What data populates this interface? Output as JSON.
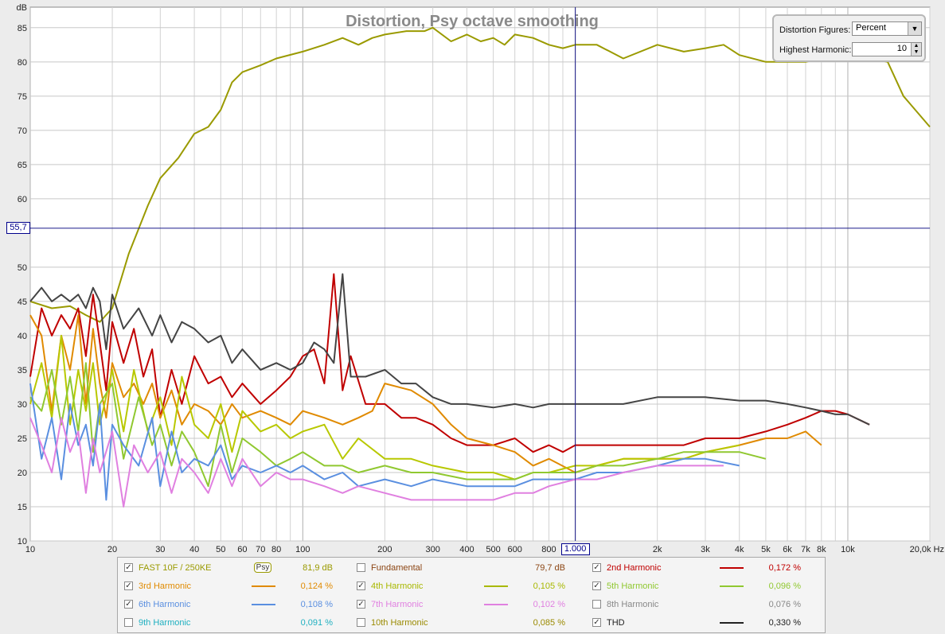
{
  "chart_data": {
    "type": "line",
    "title": "Distortion, Psy octave smoothing",
    "ylabel": "dB",
    "x_scale": "log",
    "xlim": [
      10,
      20000
    ],
    "ylim": [
      10,
      88
    ],
    "grid": true,
    "x_ticks": [
      10,
      20,
      30,
      40,
      50,
      60,
      70,
      80,
      100,
      200,
      300,
      400,
      500,
      600,
      800,
      1000,
      2000,
      3000,
      4000,
      5000,
      6000,
      7000,
      8000,
      10000,
      20000
    ],
    "x_tick_labels": [
      "10",
      "20",
      "30",
      "40",
      "50",
      "60",
      "70",
      "80",
      "100",
      "200",
      "300",
      "400",
      "500",
      "600",
      "800",
      "1.000",
      "2k",
      "3k",
      "4k",
      "5k",
      "6k",
      "7k",
      "8k",
      "10k",
      "20,0k Hz"
    ],
    "y_ticks": [
      10,
      15,
      20,
      25,
      30,
      35,
      40,
      45,
      50,
      60,
      65,
      70,
      75,
      80,
      85
    ],
    "cursor": {
      "x": 1000,
      "y": 55.7,
      "x_label": "1.000",
      "y_label": "55,7"
    },
    "series": [
      {
        "name": "FAST 10F / 250KE",
        "color": "#9a9a00",
        "x": [
          10,
          12,
          14,
          16,
          18,
          20,
          23,
          27,
          30,
          35,
          40,
          45,
          50,
          55,
          60,
          70,
          80,
          100,
          120,
          140,
          160,
          180,
          200,
          240,
          280,
          300,
          350,
          400,
          450,
          500,
          550,
          600,
          700,
          800,
          900,
          1000,
          1200,
          1500,
          2000,
          2500,
          3000,
          3500,
          4000,
          5000,
          6000,
          7000,
          8000,
          9000,
          10000,
          12000,
          14000,
          16000,
          20000
        ],
        "y": [
          45,
          44,
          44.3,
          43,
          42,
          44,
          52,
          59,
          63,
          66,
          69.5,
          70.5,
          73,
          77,
          78.5,
          79.5,
          80.5,
          81.5,
          82.5,
          83.5,
          82.5,
          83.5,
          84,
          84.5,
          84.5,
          85,
          83,
          84,
          83,
          83.5,
          82.5,
          84,
          83.5,
          82.5,
          82,
          82.5,
          82.5,
          80.5,
          82.5,
          81.5,
          82,
          82.5,
          81,
          80,
          80,
          80,
          80.5,
          81,
          80.5,
          80.5,
          80,
          75,
          70.5
        ]
      },
      {
        "name": "2nd Harmonic",
        "color": "#c00000",
        "x": [
          10,
          11,
          12,
          13,
          14,
          15,
          16,
          17,
          18,
          19,
          20,
          22,
          24,
          26,
          28,
          30,
          33,
          36,
          40,
          45,
          50,
          55,
          60,
          70,
          80,
          90,
          100,
          110,
          120,
          130,
          140,
          150,
          170,
          200,
          230,
          260,
          300,
          350,
          400,
          500,
          600,
          700,
          800,
          900,
          1000,
          1200,
          1500,
          2000,
          2500,
          3000,
          4000,
          5000,
          6000,
          7000,
          8000,
          9000,
          10000,
          12000
        ],
        "y": [
          34,
          44,
          40,
          43,
          41,
          44,
          37,
          46,
          39,
          32,
          42,
          36,
          41,
          34,
          38,
          28,
          35,
          30,
          37,
          33,
          34,
          31,
          33,
          30,
          32,
          34,
          37,
          38,
          33,
          49,
          32,
          37,
          30,
          30,
          28,
          28,
          27,
          25,
          24,
          24,
          25,
          23,
          24,
          23,
          24,
          24,
          24,
          24,
          24,
          25,
          25,
          26,
          27,
          28,
          29,
          29,
          28.5,
          27
        ]
      },
      {
        "name": "3rd Harmonic",
        "color": "#e08a00",
        "x": [
          10,
          11,
          12,
          13,
          14,
          15,
          16,
          17,
          18,
          19,
          20,
          22,
          24,
          26,
          28,
          30,
          33,
          36,
          40,
          45,
          50,
          55,
          60,
          70,
          80,
          90,
          100,
          120,
          140,
          160,
          180,
          200,
          250,
          300,
          350,
          400,
          500,
          600,
          700,
          800,
          1000,
          1200,
          1500,
          2000,
          2500,
          3000,
          4000,
          5000,
          6000,
          7000,
          8000
        ],
        "y": [
          43,
          40,
          29,
          40,
          35,
          43,
          30,
          41,
          33,
          28,
          36,
          31,
          33,
          30,
          33,
          28,
          32,
          27,
          30,
          29,
          27,
          30,
          28,
          29,
          28,
          27,
          29,
          28,
          27,
          28,
          29,
          33,
          32,
          30,
          27,
          25,
          24,
          23,
          21,
          22,
          20,
          21,
          22,
          22,
          22,
          23,
          24,
          25,
          25,
          26,
          24
        ]
      },
      {
        "name": "4th Harmonic",
        "color": "#b8c800",
        "x": [
          10,
          11,
          12,
          13,
          14,
          15,
          16,
          17,
          18,
          20,
          22,
          24,
          27,
          30,
          33,
          36,
          40,
          45,
          50,
          55,
          60,
          70,
          80,
          90,
          100,
          120,
          140,
          160,
          200,
          250,
          300,
          400,
          500,
          600,
          700,
          800,
          1000,
          1200,
          1500,
          2000,
          2500,
          3000,
          4000
        ],
        "y": [
          30,
          36,
          28,
          40,
          27,
          35,
          29,
          36,
          27,
          35,
          26,
          35,
          26,
          31,
          24,
          34,
          27,
          25,
          30,
          23,
          29,
          26,
          27,
          25,
          26,
          27,
          22,
          25,
          22,
          22,
          21,
          20,
          20,
          19,
          20,
          20,
          21,
          21,
          22,
          22,
          22,
          23,
          24
        ]
      },
      {
        "name": "5th Harmonic",
        "color": "#90c830",
        "x": [
          10,
          11,
          12,
          13,
          14,
          15,
          16,
          17,
          18,
          20,
          22,
          25,
          28,
          30,
          33,
          36,
          40,
          45,
          50,
          55,
          60,
          70,
          80,
          90,
          100,
          120,
          140,
          160,
          200,
          250,
          300,
          400,
          500,
          600,
          700,
          800,
          1000,
          1200,
          1500,
          2000,
          2500,
          3000,
          4000,
          5000
        ],
        "y": [
          31,
          29,
          35,
          27,
          34,
          26,
          36,
          23,
          30,
          33,
          22,
          31,
          24,
          27,
          21,
          26,
          23,
          18,
          27,
          20,
          25,
          23,
          21,
          22,
          23,
          21,
          21,
          20,
          21,
          20,
          20,
          19,
          19,
          19,
          20,
          20,
          20,
          21,
          21,
          22,
          23,
          23,
          23,
          22
        ]
      },
      {
        "name": "6th Harmonic",
        "color": "#5a8fe0",
        "x": [
          10,
          11,
          12,
          13,
          14,
          15,
          16,
          17,
          18,
          19,
          20,
          22,
          25,
          28,
          30,
          33,
          36,
          40,
          45,
          50,
          55,
          60,
          70,
          80,
          90,
          100,
          120,
          140,
          160,
          200,
          250,
          300,
          400,
          500,
          600,
          700,
          800,
          1000,
          1200,
          1500,
          2000,
          2500,
          3000,
          4000
        ],
        "y": [
          33,
          22,
          28,
          19,
          30,
          24,
          27,
          21,
          30,
          16,
          27,
          24,
          21,
          28,
          18,
          26,
          20,
          22,
          21,
          24,
          19,
          21,
          20,
          21,
          20,
          21,
          19,
          20,
          18,
          19,
          18,
          19,
          18,
          18,
          18,
          19,
          19,
          19,
          20,
          20,
          21,
          22,
          22,
          21
        ]
      },
      {
        "name": "7th Harmonic",
        "color": "#e080e0",
        "x": [
          10,
          11,
          12,
          13,
          14,
          15,
          16,
          17,
          18,
          20,
          22,
          24,
          27,
          30,
          33,
          36,
          40,
          45,
          50,
          55,
          60,
          70,
          80,
          90,
          100,
          120,
          140,
          160,
          200,
          250,
          300,
          400,
          500,
          600,
          700,
          800,
          1000,
          1200,
          1500,
          2000,
          2500,
          3000,
          3500
        ],
        "y": [
          28,
          24,
          20,
          28,
          23,
          26,
          17,
          25,
          20,
          26,
          15,
          24,
          20,
          23,
          17,
          22,
          20,
          17,
          22,
          18,
          22,
          18,
          20,
          19,
          19,
          18,
          17,
          18,
          17,
          16,
          16,
          16,
          16,
          17,
          17,
          18,
          19,
          19,
          20,
          21,
          21,
          21,
          21
        ]
      },
      {
        "name": "THD",
        "color": "#444444",
        "x": [
          10,
          11,
          12,
          13,
          14,
          15,
          16,
          17,
          18,
          19,
          20,
          22,
          25,
          28,
          30,
          33,
          36,
          40,
          45,
          50,
          55,
          60,
          70,
          80,
          90,
          100,
          110,
          120,
          130,
          140,
          150,
          170,
          200,
          230,
          260,
          300,
          350,
          400,
          500,
          600,
          700,
          800,
          900,
          1000,
          1200,
          1500,
          2000,
          2500,
          3000,
          4000,
          5000,
          6000,
          7000,
          8000,
          9000,
          10000,
          12000
        ],
        "y": [
          45,
          47,
          45,
          46,
          45,
          46,
          44,
          47,
          45,
          38,
          46,
          41,
          44,
          40,
          43,
          39,
          42,
          41,
          39,
          40,
          36,
          38,
          35,
          36,
          35,
          36,
          39,
          38,
          36,
          49,
          34,
          34,
          35,
          33,
          33,
          31,
          30,
          30,
          29.5,
          30,
          29.5,
          30,
          30,
          30,
          30,
          30,
          31,
          31,
          31,
          30.5,
          30.5,
          30,
          29.5,
          29,
          28.5,
          28.5,
          27
        ]
      }
    ]
  },
  "legend": [
    {
      "name": "FAST 10F / 250KE",
      "color": "#9a9a00",
      "value": "81,9 dB",
      "checked": true,
      "psy": "Psy"
    },
    {
      "name": "Fundamental",
      "color": "#8b4513",
      "value": "79,7 dB",
      "checked": false
    },
    {
      "name": "2nd Harmonic",
      "color": "#c00000",
      "value": "0,172 %",
      "checked": true
    },
    {
      "name": "3rd Harmonic",
      "color": "#e08a00",
      "value": "0,124 %",
      "checked": true
    },
    {
      "name": "4th Harmonic",
      "color": "#a8b800",
      "value": "0,105 %",
      "checked": true
    },
    {
      "name": "5th Harmonic",
      "color": "#90c830",
      "value": "0,096 %",
      "checked": true
    },
    {
      "name": "6th Harmonic",
      "color": "#5a8fe0",
      "value": "0,108 %",
      "checked": true
    },
    {
      "name": "7th Harmonic",
      "color": "#e080e0",
      "value": "0,102 %",
      "checked": true
    },
    {
      "name": "8th Harmonic",
      "color": "#888888",
      "value": "0,076 %",
      "checked": false
    },
    {
      "name": "9th Harmonic",
      "color": "#20b0c0",
      "value": "0,091 %",
      "checked": false
    },
    {
      "name": "10th Harmonic",
      "color": "#9a8a00",
      "value": "0,085 %",
      "checked": false
    },
    {
      "name": "THD",
      "color": "#222222",
      "value": "0,330 %",
      "checked": true
    }
  ],
  "controls": {
    "distortion_figures_label": "Distortion Figures:",
    "distortion_figures_value": "Percent",
    "highest_harmonic_label": "Highest Harmonic:",
    "highest_harmonic_value": "10"
  }
}
